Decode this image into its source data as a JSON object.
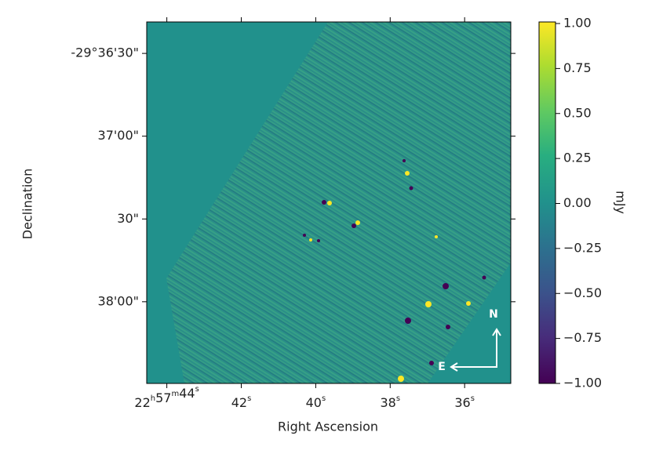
{
  "chart_data": {
    "type": "image",
    "xlabel": "Right Ascension",
    "ylabel": "Declination",
    "xlim": [
      44.54,
      34.76
    ],
    "xticks": [
      {
        "value": 44,
        "label": "22h57m44s"
      },
      {
        "value": 42,
        "label": "42s"
      },
      {
        "value": 40,
        "label": "40s"
      },
      {
        "value": 38,
        "label": "38s"
      },
      {
        "value": 36,
        "label": "36s"
      }
    ],
    "ylim": [
      -29.641556,
      -29.605167
    ],
    "yticks": [
      {
        "value": -29.608333,
        "label": "-29°36'30\""
      },
      {
        "value": -29.616667,
        "label": "37'00\""
      },
      {
        "value": -29.625,
        "label": "30\""
      },
      {
        "value": -29.633333,
        "label": "38'00\""
      }
    ],
    "colorbar": {
      "label": "mJy",
      "lim": [
        -1,
        1
      ],
      "ticks": [
        {
          "value": 1,
          "label": "1.00"
        },
        {
          "value": 0.75,
          "label": "0.75"
        },
        {
          "value": 0.5,
          "label": "0.50"
        },
        {
          "value": 0.25,
          "label": "0.25"
        },
        {
          "value": 0,
          "label": "0.00"
        },
        {
          "value": -0.25,
          "label": "−0.25"
        },
        {
          "value": -0.5,
          "label": "−0.50"
        },
        {
          "value": -0.75,
          "label": "−0.75"
        },
        {
          "value": -1,
          "label": "−1.00"
        }
      ]
    },
    "compass": {
      "north": "N",
      "east": "E"
    }
  }
}
